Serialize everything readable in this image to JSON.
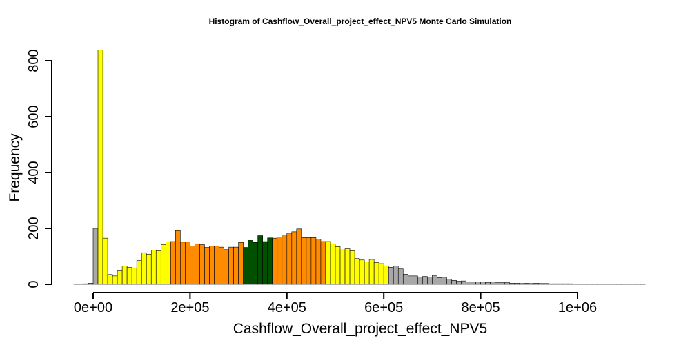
{
  "chart_data": {
    "type": "bar",
    "title": "Histogram of  Cashflow_Overall_project_effect_NPV5  Monte Carlo Simulation",
    "xlabel": "Cashflow_Overall_project_effect_NPV5",
    "ylabel": "Frequency",
    "xlim": [
      -40000,
      1140000
    ],
    "ylim": [
      0,
      840
    ],
    "bin_start": -40000,
    "bin_width": 10000,
    "x_ticks": [
      0,
      200000,
      400000,
      600000,
      800000,
      1000000
    ],
    "x_tick_labels": [
      "0e+00",
      "2e+05",
      "4e+05",
      "6e+05",
      "8e+05",
      "1e+06"
    ],
    "y_ticks": [
      0,
      200,
      400,
      600,
      800
    ],
    "y_tick_labels": [
      "0",
      "200",
      "400",
      "600",
      "800"
    ],
    "colors": {
      "gray": "#a8a8a8",
      "yellow": "#ffff00",
      "orange": "#ff8c00",
      "green": "#005000"
    },
    "values": [
      1,
      1,
      2,
      4,
      200,
      838,
      165,
      35,
      30,
      48,
      65,
      60,
      58,
      85,
      113,
      108,
      122,
      120,
      142,
      152,
      153,
      192,
      151,
      152,
      137,
      145,
      142,
      132,
      137,
      137,
      133,
      124,
      133,
      133,
      150,
      132,
      157,
      150,
      174,
      153,
      166,
      165,
      169,
      176,
      183,
      188,
      198,
      167,
      167,
      167,
      162,
      153,
      153,
      145,
      135,
      123,
      127,
      120,
      92,
      87,
      80,
      89,
      78,
      74,
      66,
      61,
      65,
      55,
      36,
      30,
      30,
      26,
      28,
      26,
      32,
      24,
      25,
      18,
      14,
      11,
      12,
      8,
      8,
      8,
      8,
      6,
      8,
      6,
      6,
      6,
      4,
      4,
      3,
      4,
      3,
      4,
      3,
      3,
      2,
      2,
      2,
      2,
      2,
      1,
      1,
      1,
      1,
      1,
      1,
      1,
      1,
      1,
      1,
      1,
      1,
      1,
      1,
      1
    ],
    "bar_colors": [
      "gray",
      "gray",
      "gray",
      "gray",
      "gray",
      "yellow",
      "yellow",
      "yellow",
      "yellow",
      "yellow",
      "yellow",
      "yellow",
      "yellow",
      "yellow",
      "yellow",
      "yellow",
      "yellow",
      "yellow",
      "yellow",
      "yellow",
      "orange",
      "orange",
      "orange",
      "orange",
      "orange",
      "orange",
      "orange",
      "orange",
      "orange",
      "orange",
      "orange",
      "orange",
      "orange",
      "orange",
      "orange",
      "green",
      "green",
      "green",
      "green",
      "green",
      "green",
      "orange",
      "orange",
      "orange",
      "orange",
      "orange",
      "orange",
      "orange",
      "orange",
      "orange",
      "orange",
      "orange",
      "yellow",
      "yellow",
      "yellow",
      "yellow",
      "yellow",
      "yellow",
      "yellow",
      "yellow",
      "yellow",
      "yellow",
      "yellow",
      "yellow",
      "yellow",
      "gray",
      "gray",
      "gray",
      "gray",
      "gray",
      "gray",
      "gray",
      "gray",
      "gray",
      "gray",
      "gray",
      "gray",
      "gray",
      "gray",
      "gray",
      "gray",
      "gray",
      "gray",
      "gray",
      "gray",
      "gray",
      "gray",
      "gray",
      "gray",
      "gray",
      "gray",
      "gray",
      "gray",
      "gray",
      "gray",
      "gray",
      "gray",
      "gray",
      "gray",
      "gray",
      "gray",
      "gray",
      "gray",
      "gray",
      "gray",
      "gray",
      "gray",
      "gray",
      "gray",
      "gray",
      "gray",
      "gray",
      "gray",
      "gray",
      "gray",
      "gray",
      "gray",
      "gray"
    ],
    "grid": false,
    "legend": "none"
  }
}
